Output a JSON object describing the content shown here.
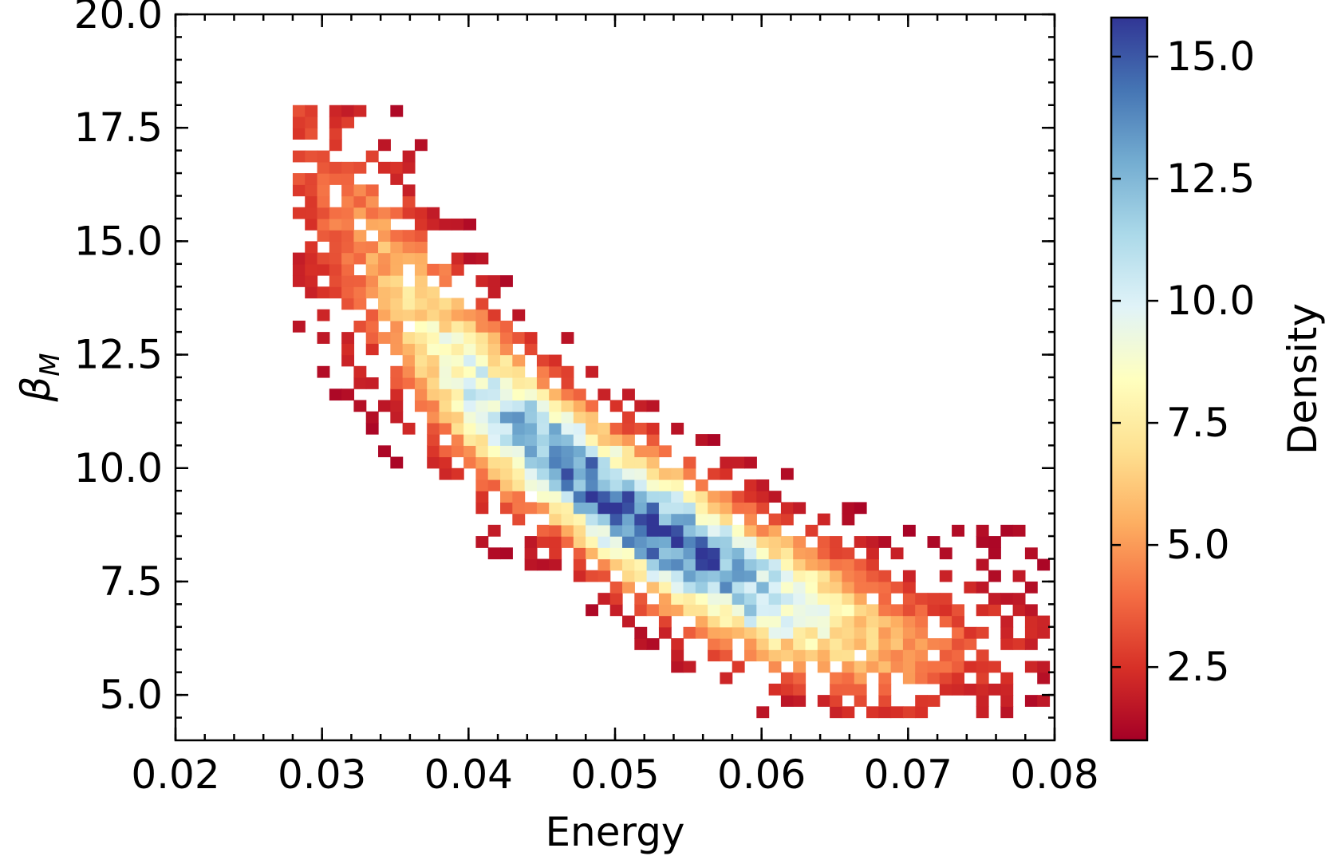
{
  "chart_data": {
    "type": "heatmap",
    "title": "",
    "xlabel": "Energy",
    "ylabel": "β",
    "ylabel_subscript": "M",
    "xlim": [
      0.02,
      0.08
    ],
    "ylim": [
      4.0,
      20.0
    ],
    "x_ticks": [
      0.02,
      0.03,
      0.04,
      0.05,
      0.06,
      0.07,
      0.08
    ],
    "x_tick_labels": [
      "0.02",
      "0.03",
      "0.04",
      "0.05",
      "0.06",
      "0.07",
      "0.08"
    ],
    "y_ticks": [
      5.0,
      7.5,
      10.0,
      12.5,
      15.0,
      17.5,
      20.0
    ],
    "y_tick_labels": [
      "5.0",
      "7.5",
      "10.0",
      "12.5",
      "15.0",
      "17.5",
      "20.0"
    ],
    "grid": false,
    "bin_width_x": 0.000833,
    "bin_width_y": 0.25,
    "density_model": {
      "ridge_points": [
        [
          0.028,
          17.0
        ],
        [
          0.04,
          11.8
        ],
        [
          0.05,
          9.2
        ],
        [
          0.06,
          7.3
        ],
        [
          0.07,
          6.0
        ],
        [
          0.079,
          6.2
        ]
      ],
      "center": [
        0.0515,
        8.4
      ],
      "peak_density": 15.0,
      "cross_ridge_sigma_beta": 1.1,
      "along_ridge_sigma_energy": 0.0115,
      "floor_density": 1.2,
      "energy_range": [
        0.028,
        0.079
      ]
    },
    "colorbar": {
      "label": "Density",
      "range": [
        1.0,
        15.8
      ],
      "ticks": [
        2.5,
        5.0,
        7.5,
        10.0,
        12.5,
        15.0
      ],
      "tick_labels": [
        "2.5",
        "5.0",
        "7.5",
        "10.0",
        "12.5",
        "15.0"
      ],
      "colormap": "RdYlBu",
      "colors": [
        "#a50026",
        "#d73027",
        "#f46d43",
        "#fdae61",
        "#fee090",
        "#ffffbf",
        "#e0f3f8",
        "#abd9e9",
        "#74add1",
        "#4575b4",
        "#313695"
      ]
    }
  }
}
